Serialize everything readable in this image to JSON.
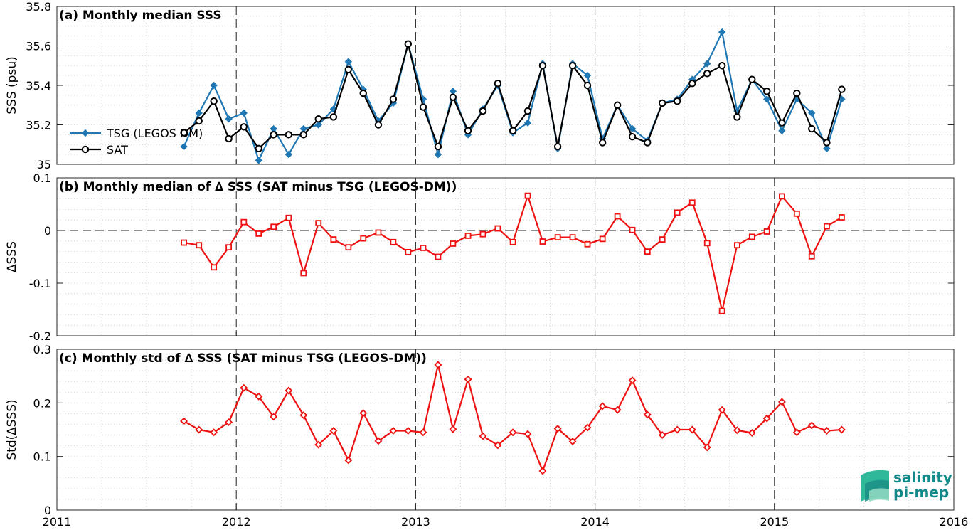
{
  "chart_data": [
    {
      "type": "line",
      "title": "(a) Monthly median SSS",
      "ylabel": "SSS (psu)",
      "xlim": [
        2011,
        2016
      ],
      "ylim": [
        35,
        35.8
      ],
      "yticks": [
        "35",
        "35.2",
        "35.4",
        "35.6",
        "35.8"
      ],
      "grid": true,
      "legend_position": "left",
      "series": [
        {
          "name": "TSG (LEGOS DM)",
          "color": "#1f77b4",
          "marker": "diamond",
          "x": [
            2011.708,
            2011.792,
            2011.875,
            2011.958,
            2012.042,
            2012.125,
            2012.208,
            2012.292,
            2012.375,
            2012.458,
            2012.542,
            2012.625,
            2012.708,
            2012.792,
            2012.875,
            2012.958,
            2013.042,
            2013.125,
            2013.208,
            2013.292,
            2013.375,
            2013.458,
            2013.542,
            2013.625,
            2013.708,
            2013.792,
            2013.875,
            2013.958,
            2014.042,
            2014.125,
            2014.208,
            2014.292,
            2014.375,
            2014.458,
            2014.542,
            2014.625,
            2014.708,
            2014.792,
            2014.875,
            2014.958,
            2015.042,
            2015.125,
            2015.208,
            2015.292,
            2015.375
          ],
          "values": [
            35.09,
            35.26,
            35.4,
            35.23,
            35.26,
            35.02,
            35.18,
            35.05,
            35.18,
            35.2,
            35.28,
            35.52,
            35.38,
            35.22,
            35.31,
            35.61,
            35.33,
            35.05,
            35.37,
            35.15,
            35.28,
            35.4,
            35.16,
            35.21,
            35.51,
            35.08,
            35.51,
            35.45,
            35.13,
            35.3,
            35.18,
            35.12,
            35.31,
            35.33,
            35.43,
            35.51,
            35.67,
            35.27,
            35.43,
            35.33,
            35.17,
            35.33,
            35.26,
            35.08,
            35.33
          ]
        },
        {
          "name": "SAT",
          "color": "#000000",
          "marker": "circle",
          "x": [
            2011.708,
            2011.792,
            2011.875,
            2011.958,
            2012.042,
            2012.125,
            2012.208,
            2012.292,
            2012.375,
            2012.458,
            2012.542,
            2012.625,
            2012.708,
            2012.792,
            2012.875,
            2012.958,
            2013.042,
            2013.125,
            2013.208,
            2013.292,
            2013.375,
            2013.458,
            2013.542,
            2013.625,
            2013.708,
            2013.792,
            2013.875,
            2013.958,
            2014.042,
            2014.125,
            2014.208,
            2014.292,
            2014.375,
            2014.458,
            2014.542,
            2014.625,
            2014.708,
            2014.792,
            2014.875,
            2014.958,
            2015.042,
            2015.125,
            2015.208,
            2015.292,
            2015.375
          ],
          "values": [
            35.16,
            35.22,
            35.32,
            35.13,
            35.19,
            35.08,
            35.15,
            35.15,
            35.15,
            35.23,
            35.24,
            35.48,
            35.36,
            35.2,
            35.33,
            35.61,
            35.29,
            35.09,
            35.34,
            35.17,
            35.27,
            35.41,
            35.17,
            35.27,
            35.5,
            35.09,
            35.5,
            35.4,
            35.11,
            35.3,
            35.14,
            35.11,
            35.31,
            35.32,
            35.41,
            35.46,
            35.5,
            35.24,
            35.43,
            35.37,
            35.21,
            35.36,
            35.18,
            35.11,
            35.38
          ]
        }
      ]
    },
    {
      "type": "line",
      "title": "(b) Monthly median of ∆ SSS (SAT minus TSG (LEGOS-DM))",
      "ylabel": "∆SSS",
      "xlim": [
        2011,
        2016
      ],
      "ylim": [
        -0.2,
        0.1
      ],
      "yticks": [
        "-0.2",
        "-0.1",
        "0",
        "0.1"
      ],
      "grid": true,
      "zero_line": true,
      "series": [
        {
          "color": "#ee1111",
          "marker": "square",
          "x": [
            2011.708,
            2011.792,
            2011.875,
            2011.958,
            2012.042,
            2012.125,
            2012.208,
            2012.292,
            2012.375,
            2012.458,
            2012.542,
            2012.625,
            2012.708,
            2012.792,
            2012.875,
            2012.958,
            2013.042,
            2013.125,
            2013.208,
            2013.292,
            2013.375,
            2013.458,
            2013.542,
            2013.625,
            2013.708,
            2013.792,
            2013.875,
            2013.958,
            2014.042,
            2014.125,
            2014.208,
            2014.292,
            2014.375,
            2014.458,
            2014.542,
            2014.625,
            2014.708,
            2014.792,
            2014.875,
            2014.958,
            2015.042,
            2015.125,
            2015.208,
            2015.292,
            2015.375
          ],
          "values": [
            -0.023,
            -0.028,
            -0.07,
            -0.032,
            0.016,
            -0.006,
            0.007,
            0.024,
            -0.081,
            0.014,
            -0.017,
            -0.032,
            -0.015,
            -0.004,
            -0.022,
            -0.041,
            -0.033,
            -0.05,
            -0.025,
            -0.01,
            -0.007,
            0.004,
            -0.022,
            0.066,
            -0.021,
            -0.013,
            -0.013,
            -0.026,
            -0.016,
            0.027,
            0.001,
            -0.04,
            -0.017,
            0.034,
            0.053,
            -0.024,
            -0.153,
            -0.028,
            -0.012,
            -0.002,
            0.065,
            0.032,
            -0.049,
            0.008,
            0.025
          ]
        }
      ]
    },
    {
      "type": "line",
      "title": "(c) Monthly std of ∆ SSS (SAT minus TSG (LEGOS-DM))",
      "ylabel": "Std(∆SSS)",
      "xlim": [
        2011,
        2016
      ],
      "ylim": [
        0,
        0.3
      ],
      "yticks": [
        "0",
        "0.1",
        "0.2",
        "0.3"
      ],
      "xticks": [
        "2011",
        "2012",
        "2013",
        "2014",
        "2015",
        "2016"
      ],
      "grid": true,
      "series": [
        {
          "color": "#ee1111",
          "marker": "diamond",
          "x": [
            2011.708,
            2011.792,
            2011.875,
            2011.958,
            2012.042,
            2012.125,
            2012.208,
            2012.292,
            2012.375,
            2012.458,
            2012.542,
            2012.625,
            2012.708,
            2012.792,
            2012.875,
            2012.958,
            2013.042,
            2013.125,
            2013.208,
            2013.292,
            2013.375,
            2013.458,
            2013.542,
            2013.625,
            2013.708,
            2013.792,
            2013.875,
            2013.958,
            2014.042,
            2014.125,
            2014.208,
            2014.292,
            2014.375,
            2014.458,
            2014.542,
            2014.625,
            2014.708,
            2014.792,
            2014.875,
            2014.958,
            2015.042,
            2015.125,
            2015.208,
            2015.292,
            2015.375
          ],
          "values": [
            0.166,
            0.15,
            0.145,
            0.164,
            0.228,
            0.212,
            0.174,
            0.223,
            0.177,
            0.122,
            0.148,
            0.093,
            0.181,
            0.129,
            0.148,
            0.148,
            0.145,
            0.271,
            0.151,
            0.244,
            0.138,
            0.121,
            0.145,
            0.142,
            0.073,
            0.152,
            0.128,
            0.154,
            0.194,
            0.187,
            0.242,
            0.178,
            0.14,
            0.15,
            0.15,
            0.117,
            0.187,
            0.149,
            0.144,
            0.171,
            0.202,
            0.145,
            0.158,
            0.148,
            0.15
          ]
        }
      ]
    }
  ],
  "logo": {
    "line1": "salinity",
    "line2": "pi-mep"
  }
}
